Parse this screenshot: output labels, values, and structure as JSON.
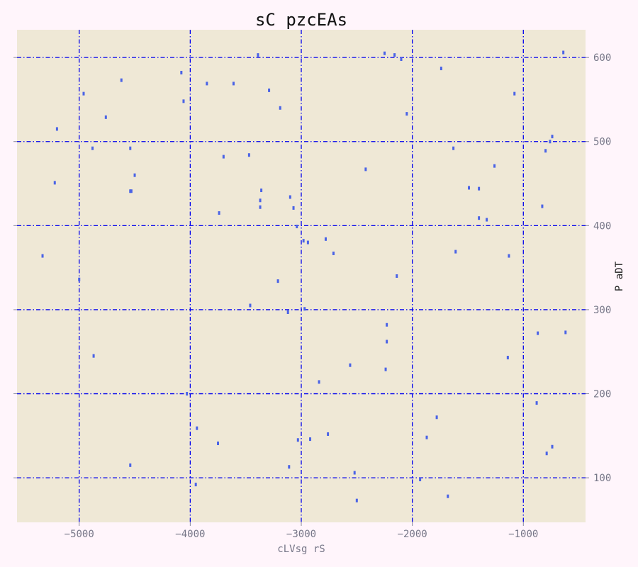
{
  "chart_data": {
    "type": "scatter",
    "title": "sC pzcEAs",
    "xlabel": "cLVsg rS",
    "ylabel": "P aDT",
    "xlim": [
      -5560,
      -440
    ],
    "ylim": [
      47,
      633
    ],
    "xticks": [
      -5000,
      -4000,
      -3000,
      -2000,
      -1000
    ],
    "xtick_labels": [
      "−5000",
      "−4000",
      "−3000",
      "−2000",
      "−1000"
    ],
    "yticks": [
      100,
      200,
      300,
      400,
      500,
      600
    ],
    "ytick_labels": [
      "100",
      "200",
      "300",
      "400",
      "500",
      "600"
    ],
    "y_axis_side": "right",
    "grid": true,
    "legend": "none",
    "colors": {
      "plot_background": "#efe8d6",
      "page_background": "#fff5fb",
      "grid": "#0000ee",
      "marker": "#4a63e6",
      "tick_label": "#777788",
      "xlabel": "#777788",
      "ylabel": "#222222",
      "title": "#111111"
    },
    "series": [
      {
        "x": [
          -5330,
          -5200,
          -5220,
          -5000,
          -4960,
          -4880,
          -4870,
          -4760,
          -4620,
          -4540,
          -4530,
          -4540,
          -4500,
          -4540,
          -4080,
          -4060,
          -4030,
          -3940,
          -3950,
          -3850,
          -3750,
          -3740,
          -3700,
          -3610,
          -3470,
          -3460,
          -3390,
          -3370,
          -3370,
          -3360,
          -3290,
          -3210,
          -3190,
          -3120,
          -3110,
          -3100,
          -3070,
          -3040,
          -3030,
          -2980,
          -2970,
          -2940,
          -2920,
          -2840,
          -2780,
          -2760,
          -2710,
          -2560,
          -2520,
          -2500,
          -2420,
          -2250,
          -2230,
          -2230,
          -2240,
          -2160,
          -2140,
          -2100,
          -2050,
          -1930,
          -1870,
          -1780,
          -1740,
          -1680,
          -1630,
          -1610,
          -1490,
          -1400,
          -1400,
          -1330,
          -1260,
          -1140,
          -1130,
          -1080,
          -880,
          -870,
          -830,
          -800,
          -790,
          -760,
          -740,
          -740,
          -640,
          -620
        ],
        "y": [
          364,
          515,
          451,
          336,
          557,
          492,
          245,
          529,
          573,
          492,
          441,
          115,
          460,
          441,
          582,
          548,
          200,
          159,
          92,
          569,
          141,
          415,
          482,
          569,
          484,
          305,
          603,
          430,
          422,
          442,
          561,
          334,
          540,
          297,
          113,
          434,
          421,
          399,
          145,
          382,
          301,
          380,
          146,
          214,
          384,
          152,
          367,
          234,
          106,
          73,
          467,
          605,
          262,
          282,
          229,
          603,
          340,
          598,
          533,
          98,
          148,
          172,
          587,
          78,
          492,
          369,
          445,
          444,
          409,
          407,
          471,
          243,
          364,
          557,
          189,
          272,
          423,
          489,
          129,
          500,
          506,
          137,
          606,
          273
        ]
      }
    ]
  }
}
